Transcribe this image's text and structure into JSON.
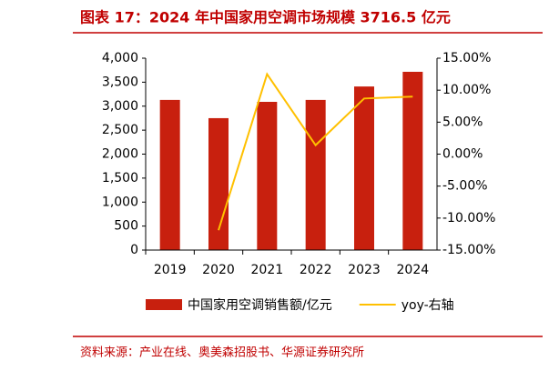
{
  "chart_data": {
    "type": "bar",
    "title": "图表 17：2024 年中国家用空调市场规模 3716.5 亿元",
    "source": "资料来源：产业在线、奥美森招股书、华源证券研究所",
    "categories": [
      "2019",
      "2020",
      "2021",
      "2022",
      "2023",
      "2024"
    ],
    "series": [
      {
        "name": "中国家用空调销售额/亿元",
        "type": "bar",
        "color": "#c8200e",
        "values": [
          3130,
          2750,
          3090,
          3130,
          3410,
          3716.5
        ]
      },
      {
        "name": "yoy-右轴",
        "type": "line",
        "axis": "y2",
        "color": "#ffc000",
        "values": [
          null,
          -11.9,
          12.5,
          1.4,
          8.7,
          9.0
        ]
      }
    ],
    "ylim": [
      0,
      4000
    ],
    "yticks": [
      0,
      500,
      {
        "value": 1000,
        "label": "1,000"
      },
      {
        "value": 1500,
        "label": "1,500"
      },
      {
        "value": 2000,
        "label": "2,000"
      },
      {
        "value": 2500,
        "label": "2,500"
      },
      {
        "value": 3000,
        "label": "3,000"
      },
      {
        "value": 3500,
        "label": "3,500"
      },
      {
        "value": 4000,
        "label": "4,000"
      }
    ],
    "y2lim": [
      -15,
      15
    ],
    "y2ticks": [
      {
        "value": -15,
        "label": "-15.00%"
      },
      {
        "value": -10,
        "label": "-10.00%"
      },
      {
        "value": -5,
        "label": "-5.00%"
      },
      {
        "value": 0,
        "label": "0.00%"
      },
      {
        "value": 5,
        "label": "5.00%"
      },
      {
        "value": 10,
        "label": "10.00%"
      },
      {
        "value": 15,
        "label": "15.00%"
      }
    ]
  }
}
